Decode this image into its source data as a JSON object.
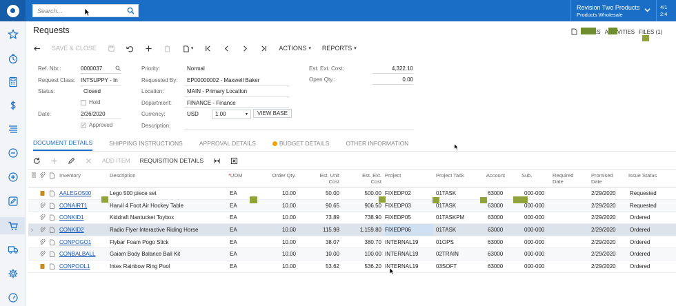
{
  "topbar": {
    "search_placeholder": "Search...",
    "tenant_name": "Revision Two Products",
    "tenant_sub": "Products Wholesale",
    "date_line1": "4/1",
    "date_line2": "2:4"
  },
  "page": {
    "title": "Requests",
    "links": {
      "notes": "NOTES",
      "activities": "ACTIVITIES",
      "files": "FILES (1)"
    }
  },
  "toolbar": {
    "save_close": "SAVE & CLOSE",
    "actions": "ACTIONS",
    "reports": "REPORTS"
  },
  "form": {
    "ref_nbr_label": "Ref. Nbr.:",
    "ref_nbr": "0000037",
    "request_class_label": "Request Class:",
    "request_class": "INTSUPPY - In",
    "status_label": "Status:",
    "status": "Closed",
    "hold_label": "Hold",
    "date_label": "Date:",
    "date": "2/26/2020",
    "approved_label": "Approved",
    "priority_label": "Priority:",
    "priority": "Normal",
    "requested_by_label": "Requested By:",
    "requested_by": "EP00000002 - Maxwell Baker",
    "location_label": "Location:",
    "location": "MAIN - Primary Location",
    "department_label": "Department:",
    "department": "FINANCE - Finance",
    "currency_label": "Currency:",
    "currency": "USD",
    "rate": "1.00",
    "view_base": "VIEW BASE",
    "description_label": "Description:",
    "est_ext_cost_label": "Est. Ext. Cost:",
    "est_ext_cost": "4,322.10",
    "open_qty_label": "Open Qty.:",
    "open_qty": "0.00"
  },
  "tabs": [
    "DOCUMENT DETAILS",
    "SHIPPING INSTRUCTIONS",
    "APPROVAL DETAILS",
    "BUDGET DETAILS",
    "OTHER INFORMATION"
  ],
  "grid_toolbar": {
    "add_item": "ADD ITEM",
    "requisition_details": "REQUISITION DETAILS"
  },
  "grid": {
    "headers": {
      "inventory": "Inventory",
      "description": "Description",
      "uom": "UOM",
      "order_qty": "Order Qty.",
      "unit_cost": "Est. Unit Cost",
      "ext_cost": "Est. Ext. Cost",
      "project": "Project",
      "project_task": "Project Task",
      "account": "Account",
      "sub": "Sub.",
      "required_date": "Required Date",
      "promised_date": "Promised Date",
      "issue_status": "Issue Status"
    },
    "rows": [
      {
        "inventory": "AALEGO500",
        "description": "Lego 500 piece set",
        "uom": "EA",
        "qty": "10.00",
        "unit": "50.00",
        "ext": "500.00",
        "project": "FIXEDP02",
        "task": "01TASK",
        "account": "63000",
        "sub": "000-000",
        "promised": "2/29/2020",
        "status": "Requested"
      },
      {
        "inventory": "CONAIRT1",
        "description": "Harvil 4 Foot Air Hockey Table",
        "uom": "EA",
        "qty": "10.00",
        "unit": "90.65",
        "ext": "906.50",
        "project": "FIXEDP03",
        "task": "01TASK",
        "account": "63000",
        "sub": "000-000",
        "promised": "2/29/2020",
        "status": "Requested"
      },
      {
        "inventory": "CONKID1",
        "description": "Kiddraft Nantucket Toybox",
        "uom": "EA",
        "qty": "10.00",
        "unit": "73.89",
        "ext": "738.90",
        "project": "FIXEDP05",
        "task": "01TASKPM",
        "account": "63000",
        "sub": "000-000",
        "promised": "2/29/2020",
        "status": "Ordered"
      },
      {
        "inventory": "CONKID2",
        "description": "Radio Flyer Interactive Riding Horse",
        "uom": "EA",
        "qty": "10.00",
        "unit": "115.98",
        "ext": "1,159.80",
        "project": "FIXEDP06",
        "task": "01TASK",
        "account": "63000",
        "sub": "000-000",
        "promised": "2/29/2020",
        "status": "Ordered"
      },
      {
        "inventory": "CONPOGO1",
        "description": "Flybar Foam Pogo Stick",
        "uom": "EA",
        "qty": "10.00",
        "unit": "38.07",
        "ext": "380.70",
        "project": "INTERNAL19",
        "task": "01OPS",
        "account": "63000",
        "sub": "000-000",
        "promised": "2/29/2020",
        "status": "Ordered"
      },
      {
        "inventory": "CONBALBALL",
        "description": "Gaiam Body Balance Ball Kit",
        "uom": "EA",
        "qty": "10.00",
        "unit": "10.00",
        "ext": "100.00",
        "project": "INTERNAL19",
        "task": "02TRAIN",
        "account": "63000",
        "sub": "000-000",
        "promised": "2/29/2020",
        "status": "Ordered"
      },
      {
        "inventory": "CONPOOL1",
        "description": "Intex Rainbow Ring Pool",
        "uom": "EA",
        "qty": "10.00",
        "unit": "53.62",
        "ext": "536.20",
        "project": "INTERNAL19",
        "task": "03SOFT",
        "account": "63000",
        "sub": "000-000",
        "promised": "2/29/2020",
        "status": "Ordered"
      }
    ]
  },
  "colors": {
    "brand": "#1a6ec5",
    "link": "#1a56b0",
    "selected_row": "#dde3ea"
  },
  "icons": [
    "logo-icon",
    "search-icon",
    "star-icon",
    "clock-icon",
    "calculator-icon",
    "dollar-icon",
    "list-icon",
    "minus-circle-icon",
    "plus-circle-icon",
    "edit-icon",
    "cart-icon",
    "truck-icon",
    "gear-icon",
    "gauge-icon"
  ]
}
